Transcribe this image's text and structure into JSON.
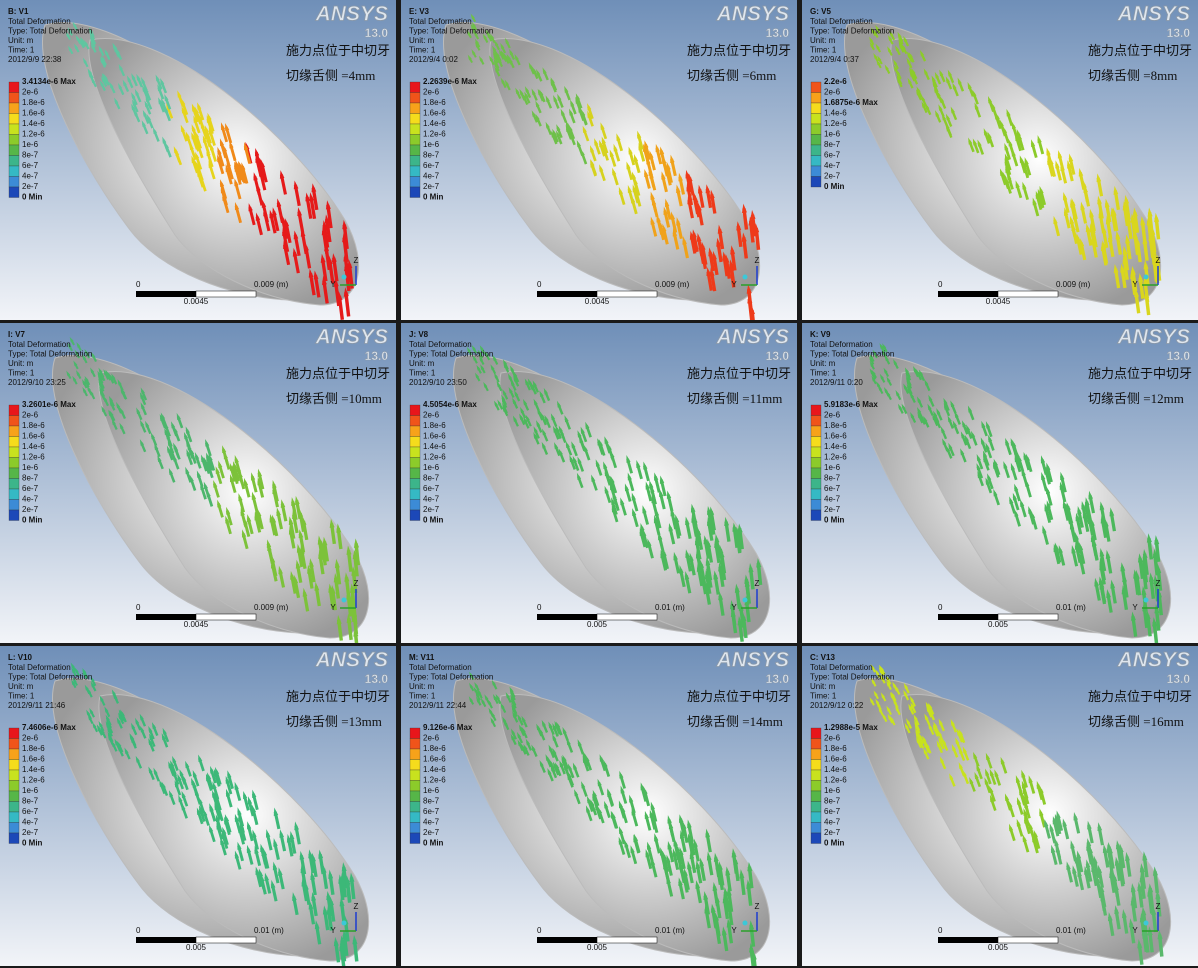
{
  "common": {
    "logo": "ANSYS",
    "version": "13.0",
    "lines": [
      "Total Deformation",
      "Type: Total Deformation",
      "Unit: m",
      "Time: 1"
    ],
    "axis_z": "Z",
    "axis_y": "Y",
    "note_top": "施力点位于中切牙"
  },
  "panels": [
    {
      "title": "B: V1",
      "date": "2012/9/9 22:38",
      "legend": [
        "3.4134e-6 Max",
        "2e-6",
        "1.8e-6",
        "1.6e-6",
        "1.4e-6",
        "1.2e-6",
        "1e-6",
        "8e-7",
        "6e-7",
        "4e-7",
        "2e-7",
        "0 Min"
      ],
      "note": "切缘舌侧 =4mm",
      "scale": [
        "0",
        "0.0045",
        "0.009 (m)"
      ]
    },
    {
      "title": "E: V3",
      "date": "2012/9/4 0:02",
      "legend": [
        "2.2639e-6 Max",
        "2e-6",
        "1.8e-6",
        "1.6e-6",
        "1.4e-6",
        "1.2e-6",
        "1e-6",
        "8e-7",
        "6e-7",
        "4e-7",
        "2e-7",
        "0 Min"
      ],
      "note": "切缘舌侧 =6mm",
      "scale": [
        "0",
        "0.0045",
        "0.009 (m)"
      ]
    },
    {
      "title": "G: V5",
      "date": "2012/9/4 0:37",
      "legend": [
        "2.2e-6",
        "2e-6",
        "1.6875e-6 Max",
        "1.4e-6",
        "1.2e-6",
        "1e-6",
        "8e-7",
        "6e-7",
        "4e-7",
        "2e-7",
        "0 Min"
      ],
      "note": "切缘舌侧 =8mm",
      "scale": [
        "0",
        "0.0045",
        "0.009 (m)"
      ]
    },
    {
      "title": "I: V7",
      "date": "2012/9/10 23:25",
      "legend": [
        "3.2601e-6 Max",
        "2e-6",
        "1.8e-6",
        "1.6e-6",
        "1.4e-6",
        "1.2e-6",
        "1e-6",
        "8e-7",
        "6e-7",
        "4e-7",
        "2e-7",
        "0 Min"
      ],
      "note": "切缘舌侧 =10mm",
      "scale": [
        "0",
        "0.0045",
        "0.009 (m)"
      ]
    },
    {
      "title": "J: V8",
      "date": "2012/9/10 23:50",
      "legend": [
        "4.5054e-6 Max",
        "2e-6",
        "1.8e-6",
        "1.6e-6",
        "1.4e-6",
        "1.2e-6",
        "1e-6",
        "8e-7",
        "6e-7",
        "4e-7",
        "2e-7",
        "0 Min"
      ],
      "note": "切缘舌侧 =11mm",
      "scale": [
        "0",
        "0.005",
        "0.01 (m)"
      ]
    },
    {
      "title": "K: V9",
      "date": "2012/9/11 0:20",
      "legend": [
        "5.9183e-6 Max",
        "2e-6",
        "1.8e-6",
        "1.6e-6",
        "1.4e-6",
        "1.2e-6",
        "1e-6",
        "8e-7",
        "6e-7",
        "4e-7",
        "2e-7",
        "0 Min"
      ],
      "note": "切缘舌侧 =12mm",
      "scale": [
        "0",
        "0.005",
        "0.01 (m)"
      ]
    },
    {
      "title": "L: V10",
      "date": "2012/9/11 21:46",
      "legend": [
        "7.4606e-6 Max",
        "2e-6",
        "1.8e-6",
        "1.6e-6",
        "1.4e-6",
        "1.2e-6",
        "1e-6",
        "8e-7",
        "6e-7",
        "4e-7",
        "2e-7",
        "0 Min"
      ],
      "note": "切缘舌侧 =13mm",
      "scale": [
        "0",
        "0.005",
        "0.01 (m)"
      ]
    },
    {
      "title": "M: V11",
      "date": "2012/9/11 22:44",
      "legend": [
        "9.126e-6 Max",
        "2e-6",
        "1.8e-6",
        "1.6e-6",
        "1.4e-6",
        "1.2e-6",
        "1e-6",
        "8e-7",
        "6e-7",
        "4e-7",
        "2e-7",
        "0 Min"
      ],
      "note": "切缘舌侧 =14mm",
      "scale": [
        "0",
        "0.005",
        "0.01 (m)"
      ]
    },
    {
      "title": "C: V13",
      "date": "2012/9/12 0:22",
      "legend": [
        "1.2988e-5 Max",
        "2e-6",
        "1.8e-6",
        "1.6e-6",
        "1.4e-6",
        "1.2e-6",
        "1e-6",
        "8e-7",
        "6e-7",
        "4e-7",
        "2e-7",
        "0 Min"
      ],
      "note": "切缘舌侧 =16mm",
      "scale": [
        "0",
        "0.005",
        "0.01 (m)"
      ]
    }
  ]
}
